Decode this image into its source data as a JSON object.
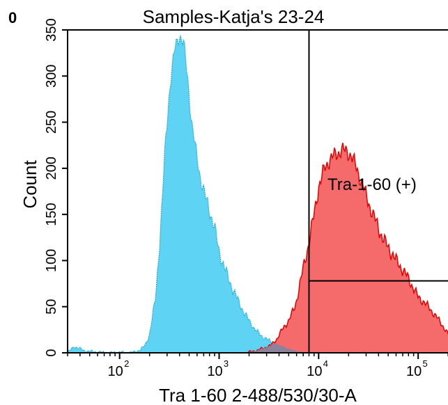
{
  "panel_marker": "0",
  "colors": {
    "marker": "#22dd00",
    "negative_fill": "#5fd3f3",
    "negative_edge": "#21a9d6",
    "positive_fill": "#f56a6a",
    "positive_edge": "#e60000",
    "overlap_fill": "#7b86a3",
    "axis": "#000000",
    "background": "#ffffff"
  },
  "chart_data": {
    "type": "area",
    "title": "Samples-Katja's 23-24",
    "xlabel": "Tra 1-60 2-488/530/30-A",
    "ylabel": "Count",
    "xscale": "log",
    "xlim": [
      30,
      250000
    ],
    "ylim": [
      0,
      350
    ],
    "yticks": [
      0,
      50,
      100,
      150,
      200,
      250,
      300,
      350
    ],
    "yticklabels": [
      "0",
      "50",
      "100",
      "150",
      "200",
      "250",
      "300",
      "350"
    ],
    "xticks": [
      {
        "value": 100,
        "base": "10",
        "exp": "2"
      },
      {
        "value": 1000,
        "base": "10",
        "exp": "3"
      },
      {
        "value": 10000,
        "base": "10",
        "exp": "4"
      },
      {
        "value": 100000,
        "base": "10",
        "exp": "5"
      }
    ],
    "grid": false,
    "series": [
      {
        "role": "negative",
        "x": [
          30,
          35,
          45,
          60,
          80,
          100,
          120,
          140,
          160,
          180,
          200,
          230,
          260,
          290,
          320,
          360,
          400,
          440,
          480,
          530,
          580,
          650,
          720,
          800,
          900,
          1000,
          1150,
          1300,
          1500,
          1750,
          2000,
          2300,
          2700,
          3100,
          3600,
          4200,
          4800,
          5500,
          6500,
          8000
        ],
        "values": [
          0,
          7,
          2,
          1,
          0,
          1,
          0,
          1,
          3,
          8,
          20,
          60,
          140,
          230,
          290,
          330,
          345,
          335,
          300,
          250,
          220,
          190,
          170,
          155,
          135,
          110,
          90,
          75,
          60,
          45,
          35,
          25,
          18,
          14,
          10,
          8,
          5,
          3,
          1,
          0
        ]
      },
      {
        "role": "positive",
        "x": [
          1800,
          2300,
          2800,
          3300,
          3800,
          4300,
          5000,
          5800,
          6800,
          8000,
          9000,
          10000,
          11500,
          13000,
          15000,
          17000,
          19000,
          21000,
          23000,
          26000,
          30000,
          35000,
          40000,
          46000,
          53000,
          60000,
          70000,
          80000,
          90000,
          100000,
          115000,
          130000,
          150000,
          175000,
          200000,
          225000,
          250000
        ],
        "values": [
          0,
          2,
          5,
          8,
          15,
          25,
          35,
          50,
          85,
          120,
          150,
          180,
          200,
          210,
          215,
          220,
          218,
          215,
          205,
          190,
          170,
          150,
          135,
          120,
          110,
          100,
          90,
          80,
          70,
          60,
          55,
          48,
          40,
          30,
          20,
          12,
          5
        ]
      }
    ],
    "gates": [
      {
        "name": "Tra-1-60 (+)",
        "x_threshold": 8000,
        "y_threshold": 78
      }
    ]
  }
}
